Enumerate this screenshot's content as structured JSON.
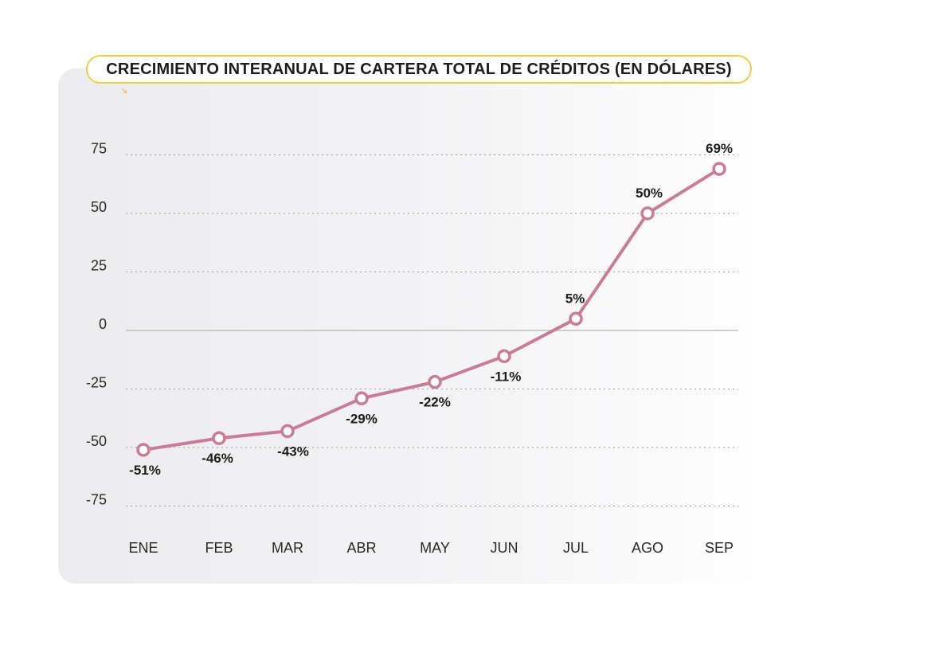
{
  "chart_data": {
    "type": "line",
    "title": "CRECIMIENTO INTERANUAL DE CARTERA TOTAL DE CRÉDITOS (EN DÓLARES)",
    "categories": [
      "ENE",
      "FEB",
      "MAR",
      "ABR",
      "MAY",
      "JUN",
      "JUL",
      "AGO",
      "SEP"
    ],
    "values": [
      -51,
      -46,
      -43,
      -29,
      -22,
      -11,
      5,
      50,
      69
    ],
    "data_labels": [
      "-51%",
      "-46%",
      "-43%",
      "-29%",
      "-22%",
      "-11%",
      "5%",
      "50%",
      "69%"
    ],
    "y_ticks": [
      "75",
      "50",
      "25",
      "0",
      "-25",
      "-50",
      "-75"
    ],
    "ylim": [
      -75,
      75
    ],
    "grid": "horizontal dotted",
    "colors": {
      "line": "#c97b97",
      "title_border": "#f0c94a",
      "panel": "#efeff1",
      "zero_line": "#b5b5b5"
    }
  },
  "corner_icon": "arrow-down-right-icon"
}
